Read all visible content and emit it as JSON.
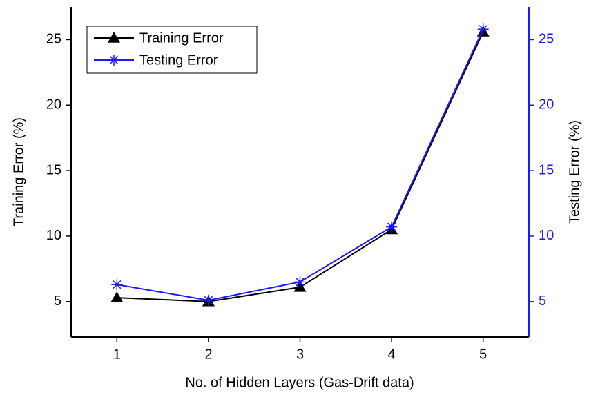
{
  "chart_data": {
    "type": "line",
    "x_label": "No. of Hidden Layers (Gas-Drift data)",
    "y_label": "Training Error (%)",
    "y2_label": "Testing Error (%)",
    "x": [
      1,
      2,
      3,
      4,
      5
    ],
    "xlim": [
      0.5,
      5.5
    ],
    "xticks": [
      1,
      2,
      3,
      4,
      5
    ],
    "ylim": [
      2.3,
      27.5
    ],
    "yticks": [
      5,
      10,
      15,
      20,
      25
    ],
    "y2lim": [
      2.3,
      27.5
    ],
    "y2ticks": [
      5,
      10,
      15,
      20,
      25
    ],
    "legend": "upper left",
    "series": [
      {
        "name": "Training Error",
        "color": "#000000",
        "marker": "triangle",
        "values": [
          5.3,
          5.0,
          6.1,
          10.5,
          25.6
        ]
      },
      {
        "name": "Testing Error",
        "color": "#1a1aff",
        "marker": "asterisk",
        "axis": "y2",
        "values": [
          6.3,
          5.1,
          6.5,
          10.7,
          25.8
        ]
      }
    ]
  }
}
